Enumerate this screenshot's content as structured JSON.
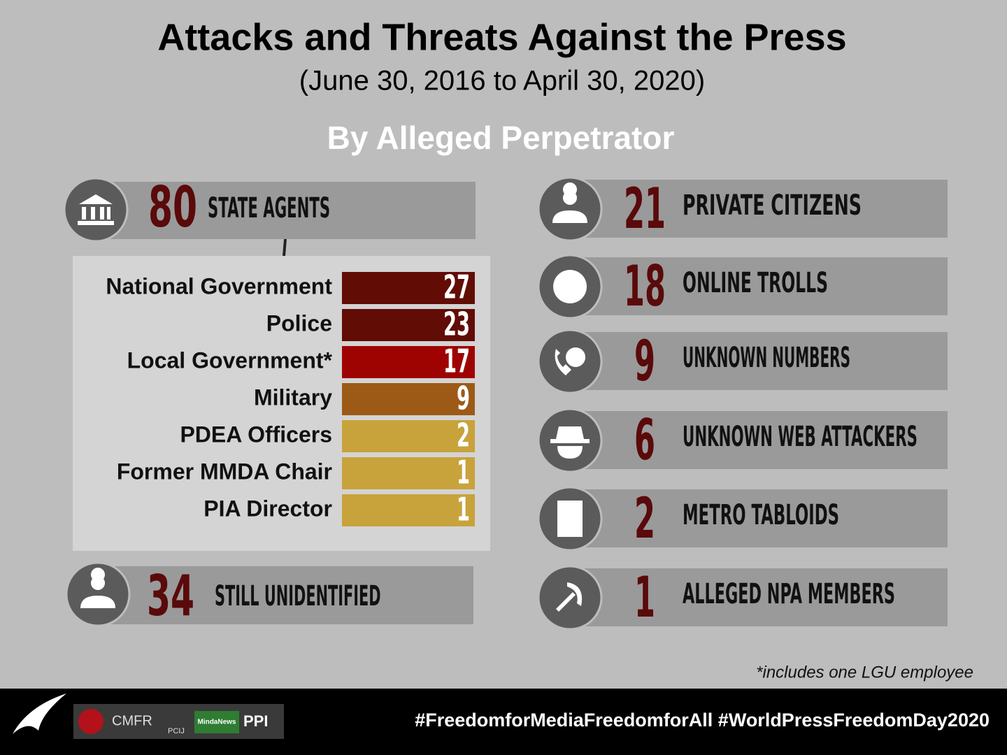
{
  "title": "Attacks and Threats Against the Press",
  "subtitle": "(June 30, 2016 to April 30, 2020)",
  "section_title": "By Alleged Perpetrator",
  "state_agents": {
    "count": 80,
    "label": "STATE AGENTS",
    "breakdown": [
      {
        "name": "National Government",
        "count": 27,
        "color": "#620c06"
      },
      {
        "name": "Police",
        "count": 23,
        "color": "#620c06"
      },
      {
        "name": "Local Government*",
        "count": 17,
        "color": "#9e0302"
      },
      {
        "name": "Military",
        "count": 9,
        "color": "#9c5a16"
      },
      {
        "name": "PDEA Officers",
        "count": 2,
        "color": "#c8a33c"
      },
      {
        "name": "Former MMDA Chair",
        "count": 1,
        "color": "#c8a33c"
      },
      {
        "name": "PIA Director",
        "count": 1,
        "color": "#c8a33c"
      }
    ]
  },
  "unidentified": {
    "count": 34,
    "label": "STILL UNIDENTIFIED"
  },
  "others": [
    {
      "count": 21,
      "label": "PRIVATE CITIZENS"
    },
    {
      "count": 18,
      "label": "ONLINE TROLLS"
    },
    {
      "count": 9,
      "label": "UNKNOWN NUMBERS"
    },
    {
      "count": 6,
      "label": "UNKNOWN WEB ATTACKERS"
    },
    {
      "count": 2,
      "label": "METRO TABLOIDS"
    },
    {
      "count": 1,
      "label": "ALLEGED NPA MEMBERS"
    }
  ],
  "footnote": "*includes one LGU employee",
  "hashtags": "#FreedomforMediaFreedomforAll #WorldPressFreedomDay2020",
  "logos": [
    "CMFR",
    "PCIJ",
    "MindaNews",
    "PPI"
  ]
}
